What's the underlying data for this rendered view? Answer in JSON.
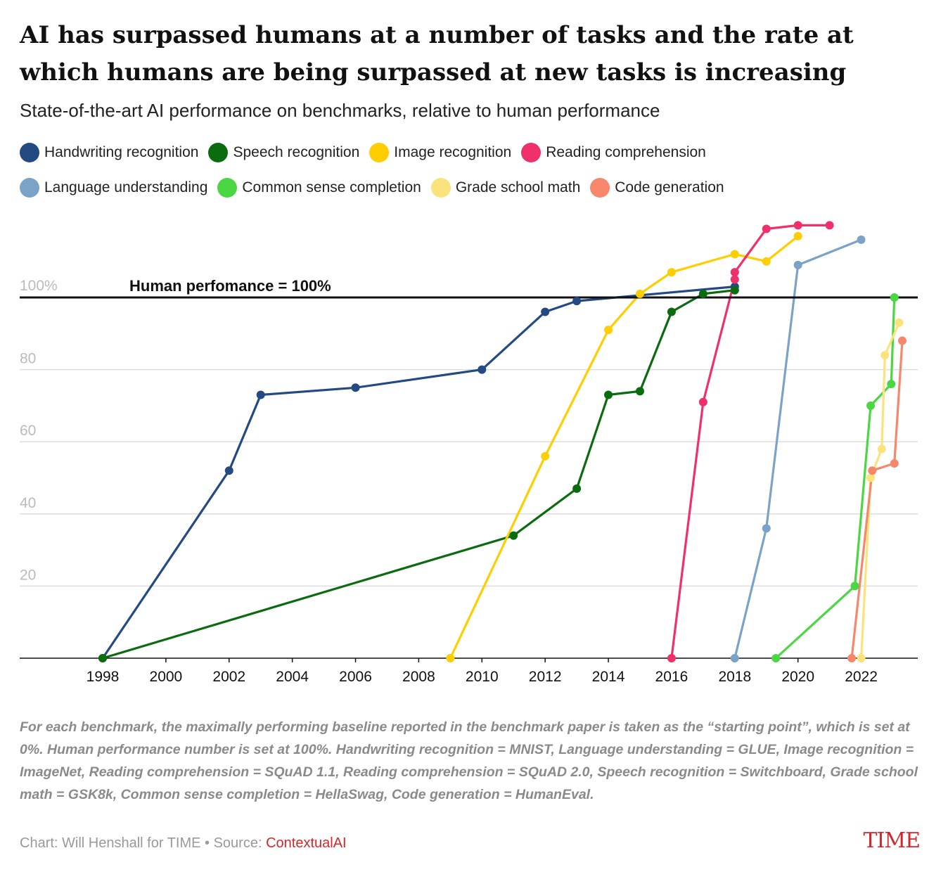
{
  "title": "AI has surpassed humans at a number of tasks and the rate at which humans are being surpassed at new tasks is increasing",
  "subtitle": "State-of-the-art AI performance on benchmarks, relative to human performance",
  "note": "For each benchmark, the maximally performing baseline reported in the benchmark paper is taken as the “starting point”, which is set at 0%. Human performance number is set at 100%. Handwriting recognition = MNIST, Language understanding = GLUE, Image recognition = ImageNet, Reading comprehension = SQuAD 1.1, Reading comprehension = SQuAD 2.0, Speech recognition = Switchboard, Grade school math = GSK8k, Common sense completion = HellaSwag, Code generation = HumanEval.",
  "credit": {
    "text": "Chart: Will Henshall for TIME • Source: ",
    "source": "ContextualAI"
  },
  "brand": "TIME",
  "colors": {
    "axis": "#111111",
    "grid": "#dddddd",
    "tick": "#bbbbbb"
  },
  "chart_data": {
    "type": "line",
    "xlabel": "",
    "ylabel": "",
    "xlim": [
      1996.4,
      2023.7
    ],
    "ylim": [
      0,
      118
    ],
    "x_ticks": [
      1998,
      2000,
      2002,
      2004,
      2006,
      2008,
      2010,
      2012,
      2014,
      2016,
      2018,
      2020,
      2022
    ],
    "y_ticks": [
      20,
      40,
      60,
      80
    ],
    "y_top_label": "100%",
    "reference_line": {
      "y": 100,
      "label": "Human perfomance = 100%"
    },
    "grid": true,
    "legend_position": "top",
    "series": [
      {
        "name": "Handwriting recognition",
        "color": "#234a82",
        "points": [
          [
            1998,
            0
          ],
          [
            2002,
            52
          ],
          [
            2003,
            73
          ],
          [
            2006,
            75
          ],
          [
            2010,
            80
          ],
          [
            2012,
            96
          ],
          [
            2013,
            99
          ],
          [
            2018,
            103
          ]
        ]
      },
      {
        "name": "Speech recognition",
        "color": "#0a6b0f",
        "points": [
          [
            1998,
            0
          ],
          [
            2011,
            34
          ],
          [
            2013,
            47
          ],
          [
            2014,
            73
          ],
          [
            2015,
            74
          ],
          [
            2016,
            96
          ],
          [
            2017,
            101
          ],
          [
            2018,
            102
          ]
        ]
      },
      {
        "name": "Image recognition",
        "color": "#fece00",
        "points": [
          [
            2009,
            0
          ],
          [
            2012,
            56
          ],
          [
            2014,
            91
          ],
          [
            2015,
            101
          ],
          [
            2016,
            107
          ],
          [
            2018,
            112
          ],
          [
            2019,
            110
          ],
          [
            2020,
            117
          ]
        ]
      },
      {
        "name": "Reading comprehension",
        "color": "#f0306a",
        "points": [
          [
            2016,
            0
          ],
          [
            2017,
            71
          ],
          [
            2018,
            105
          ],
          [
            2018,
            107
          ],
          [
            2019,
            119
          ],
          [
            2020,
            120
          ],
          [
            2021,
            120
          ]
        ]
      },
      {
        "name": "Language understanding",
        "color": "#7aa3c7",
        "points": [
          [
            2018,
            0
          ],
          [
            2019,
            36
          ],
          [
            2020,
            109
          ],
          [
            2022,
            116
          ]
        ]
      },
      {
        "name": "Common sense completion",
        "color": "#4bd742",
        "points": [
          [
            2019.3,
            0
          ],
          [
            2021.8,
            20
          ],
          [
            2022.3,
            70
          ],
          [
            2022.95,
            76
          ],
          [
            2023.05,
            100
          ]
        ]
      },
      {
        "name": "Grade school math",
        "color": "#fbe37c",
        "points": [
          [
            2022,
            0
          ],
          [
            2022.3,
            50
          ],
          [
            2022.65,
            58
          ],
          [
            2022.75,
            84
          ],
          [
            2023.2,
            93
          ]
        ]
      },
      {
        "name": "Code generation",
        "color": "#f7876a",
        "points": [
          [
            2021.7,
            0
          ],
          [
            2022.35,
            52
          ],
          [
            2023.05,
            54
          ],
          [
            2023.3,
            88
          ]
        ]
      }
    ]
  }
}
